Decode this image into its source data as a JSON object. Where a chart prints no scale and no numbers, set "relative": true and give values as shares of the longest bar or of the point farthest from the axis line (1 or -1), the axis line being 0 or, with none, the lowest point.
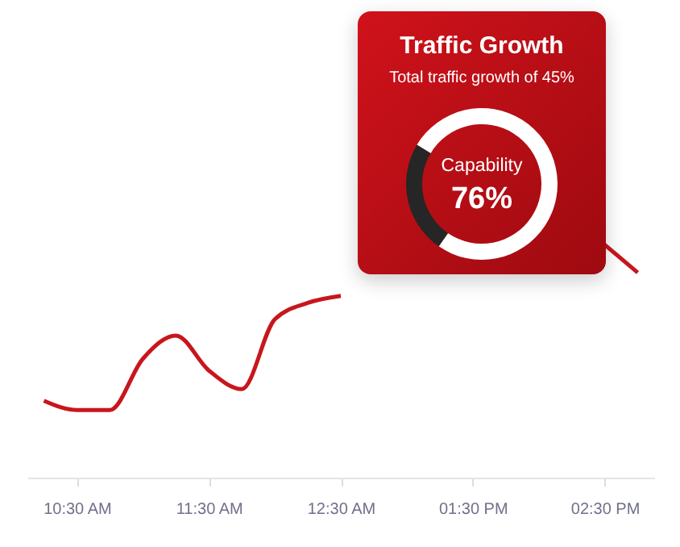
{
  "chart_data": [
    {
      "type": "line",
      "relative": true,
      "categories": [
        null,
        "10:30 AM",
        null,
        null,
        null,
        "11:30 AM",
        null,
        null,
        null,
        "12:30 AM",
        null,
        null,
        null,
        "01:30 PM",
        null,
        null,
        null,
        "02:30 PM",
        null
      ],
      "series": [
        {
          "color": "#c8161d",
          "values": [
            0.33,
            0.29,
            0.29,
            0.51,
            0.61,
            0.46,
            0.38,
            0.68,
            0.75,
            0.78,
            null,
            null,
            null,
            null,
            null,
            null,
            null,
            null,
            null
          ]
        },
        {
          "color": "#c8161d",
          "values": [
            null,
            null,
            null,
            null,
            null,
            null,
            null,
            null,
            null,
            null,
            null,
            null,
            null,
            null,
            null,
            null,
            null,
            1,
            0.88
          ]
        }
      ]
    },
    {
      "type": "donut",
      "title": "Traffic Growth",
      "subtitle": "Total traffic growth of 45%",
      "categories": [
        "Capability",
        null
      ],
      "values": [
        76,
        24
      ],
      "colors": [
        "#ffffff",
        "#262626"
      ],
      "value_labels": [
        "76%",
        null
      ]
    }
  ]
}
